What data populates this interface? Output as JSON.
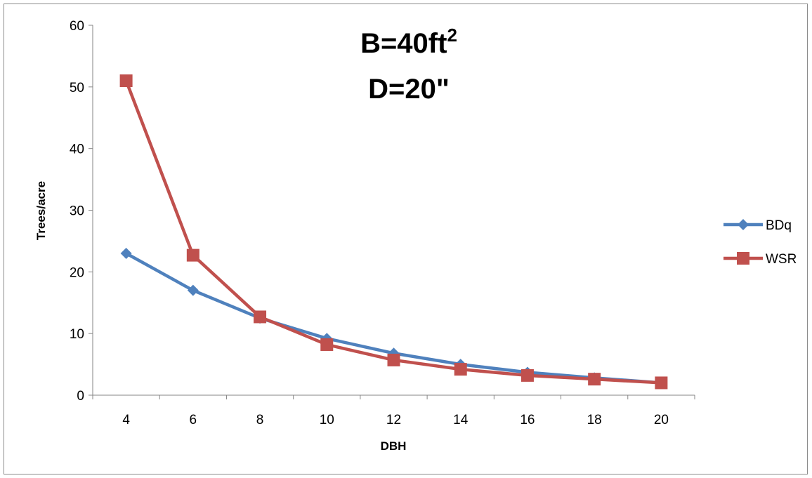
{
  "chart_data": {
    "type": "line",
    "title": "",
    "annotations": [
      {
        "text": "B=40ft",
        "sup": "2"
      },
      {
        "text": "D=20\"",
        "sup": ""
      }
    ],
    "xlabel": "DBH",
    "ylabel": "Trees/acre",
    "categories": [
      "4",
      "6",
      "8",
      "10",
      "12",
      "14",
      "16",
      "18",
      "20"
    ],
    "ylim": [
      0,
      60
    ],
    "yticks": [
      "0",
      "10",
      "20",
      "30",
      "40",
      "50",
      "60"
    ],
    "grid": false,
    "legend_position": "right",
    "series": [
      {
        "name": "BDq",
        "color": "#4f81bd",
        "marker": "diamond",
        "values": [
          23.0,
          17.0,
          12.5,
          9.2,
          6.8,
          5.0,
          3.7,
          2.8,
          2.0
        ]
      },
      {
        "name": "WSR",
        "color": "#c0504d",
        "marker": "square",
        "values": [
          51.0,
          22.7,
          12.7,
          8.2,
          5.7,
          4.2,
          3.2,
          2.6,
          2.0
        ]
      }
    ]
  }
}
